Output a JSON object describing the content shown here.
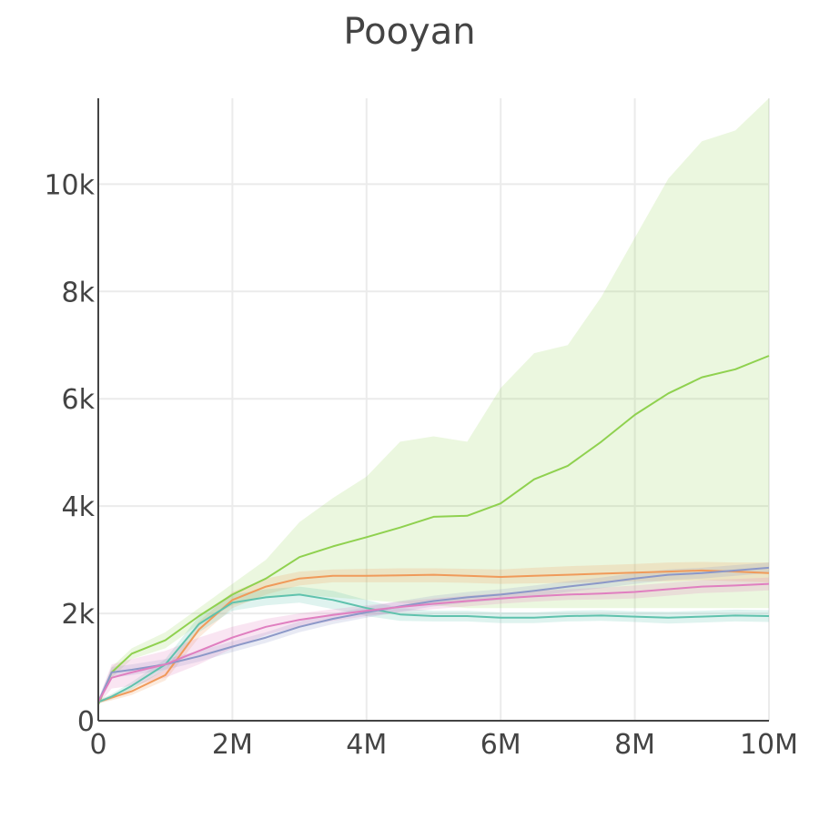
{
  "chart_data": {
    "type": "line",
    "title": "Pooyan",
    "xlabel": "",
    "ylabel": "",
    "xlim": [
      0,
      10000000
    ],
    "ylim": [
      0,
      11600
    ],
    "x_ticks": [
      {
        "value": 0,
        "label": "0"
      },
      {
        "value": 2000000,
        "label": "2M"
      },
      {
        "value": 4000000,
        "label": "4M"
      },
      {
        "value": 6000000,
        "label": "6M"
      },
      {
        "value": 8000000,
        "label": "8M"
      },
      {
        "value": 10000000,
        "label": "10M"
      }
    ],
    "y_ticks": [
      {
        "value": 0,
        "label": "0"
      },
      {
        "value": 2000,
        "label": "2k"
      },
      {
        "value": 4000,
        "label": "4k"
      },
      {
        "value": 6000,
        "label": "6k"
      },
      {
        "value": 8000,
        "label": "8k"
      },
      {
        "value": 10000,
        "label": "10k"
      }
    ],
    "grid": true,
    "legend": "none",
    "series": [
      {
        "color": "#8fd14f",
        "x": [
          0,
          200000,
          500000,
          1000000,
          1500000,
          2000000,
          2500000,
          3000000,
          3500000,
          4000000,
          4500000,
          5000000,
          5500000,
          6000000,
          6500000,
          7000000,
          7500000,
          8000000,
          8500000,
          9000000,
          9500000,
          10000000
        ],
        "y": [
          300,
          900,
          1250,
          1500,
          1950,
          2350,
          2650,
          3050,
          3250,
          3420,
          3600,
          3800,
          3820,
          4050,
          4500,
          4750,
          5200,
          5700,
          6100,
          6400,
          6550,
          6800
        ],
        "upper": [
          300,
          1000,
          1350,
          1650,
          2100,
          2550,
          3000,
          3700,
          4150,
          4550,
          5200,
          5300,
          5200,
          6200,
          6850,
          7000,
          7900,
          9000,
          10100,
          10800,
          11000,
          11600
        ],
        "lower": [
          300,
          800,
          1150,
          1350,
          1800,
          2150,
          2300,
          2350,
          2300,
          2250,
          2200,
          2150,
          2100,
          2100,
          2100,
          2100,
          2100,
          2100,
          2100,
          2100,
          2100,
          2100
        ]
      },
      {
        "color": "#f09a5a",
        "x": [
          0,
          200000,
          500000,
          1000000,
          1500000,
          2000000,
          2500000,
          3000000,
          3500000,
          4000000,
          4500000,
          5000000,
          5500000,
          6000000,
          6500000,
          7000000,
          7500000,
          8000000,
          8500000,
          9000000,
          9500000,
          10000000
        ],
        "y": [
          350,
          430,
          550,
          850,
          1700,
          2250,
          2500,
          2650,
          2700,
          2700,
          2710,
          2720,
          2700,
          2680,
          2700,
          2720,
          2740,
          2760,
          2780,
          2800,
          2780,
          2750
        ],
        "upper": [
          380,
          480,
          620,
          950,
          1850,
          2400,
          2650,
          2780,
          2820,
          2830,
          2840,
          2840,
          2830,
          2820,
          2850,
          2880,
          2900,
          2920,
          2950,
          2960,
          2950,
          2950
        ],
        "lower": [
          320,
          380,
          480,
          750,
          1550,
          2100,
          2350,
          2520,
          2580,
          2580,
          2580,
          2580,
          2570,
          2550,
          2560,
          2570,
          2580,
          2600,
          2600,
          2620,
          2600,
          2580
        ]
      },
      {
        "color": "#5fc2ad",
        "x": [
          0,
          200000,
          500000,
          1000000,
          1500000,
          2000000,
          2500000,
          3000000,
          3500000,
          4000000,
          4500000,
          5000000,
          5500000,
          6000000,
          6500000,
          7000000,
          7500000,
          8000000,
          8500000,
          9000000,
          9500000,
          10000000
        ],
        "y": [
          350,
          450,
          650,
          1050,
          1800,
          2200,
          2300,
          2350,
          2250,
          2100,
          1980,
          1950,
          1950,
          1920,
          1920,
          1950,
          1960,
          1940,
          1920,
          1940,
          1960,
          1950
        ],
        "upper": [
          380,
          500,
          720,
          1150,
          1950,
          2350,
          2450,
          2500,
          2420,
          2250,
          2100,
          2050,
          2050,
          2020,
          2020,
          2050,
          2060,
          2040,
          2030,
          2050,
          2070,
          2060
        ],
        "lower": [
          320,
          400,
          580,
          950,
          1650,
          2050,
          2150,
          2200,
          2080,
          1950,
          1860,
          1850,
          1850,
          1820,
          1820,
          1850,
          1860,
          1840,
          1810,
          1830,
          1850,
          1840
        ]
      },
      {
        "color": "#8c98c8",
        "x": [
          0,
          200000,
          500000,
          1000000,
          1500000,
          2000000,
          2500000,
          3000000,
          3500000,
          4000000,
          4500000,
          5000000,
          5500000,
          6000000,
          6500000,
          7000000,
          7500000,
          8000000,
          8500000,
          9000000,
          9500000,
          10000000
        ],
        "y": [
          350,
          900,
          950,
          1050,
          1200,
          1380,
          1550,
          1750,
          1900,
          2020,
          2130,
          2230,
          2300,
          2350,
          2420,
          2500,
          2570,
          2650,
          2720,
          2750,
          2800,
          2850
        ],
        "upper": [
          400,
          1000,
          1050,
          1150,
          1300,
          1480,
          1650,
          1850,
          2000,
          2120,
          2230,
          2330,
          2400,
          2450,
          2520,
          2600,
          2670,
          2750,
          2820,
          2850,
          2900,
          2950
        ],
        "lower": [
          300,
          800,
          850,
          950,
          1100,
          1280,
          1450,
          1650,
          1800,
          1920,
          2030,
          2130,
          2200,
          2250,
          2320,
          2400,
          2470,
          2550,
          2620,
          2650,
          2700,
          2750
        ]
      },
      {
        "color": "#e07fc0",
        "x": [
          0,
          200000,
          500000,
          1000000,
          1500000,
          2000000,
          2500000,
          3000000,
          3500000,
          4000000,
          4500000,
          5000000,
          5500000,
          6000000,
          6500000,
          7000000,
          7500000,
          8000000,
          8500000,
          9000000,
          9500000,
          10000000
        ],
        "y": [
          350,
          800,
          900,
          1050,
          1300,
          1550,
          1750,
          1880,
          1970,
          2050,
          2120,
          2180,
          2230,
          2280,
          2320,
          2350,
          2370,
          2400,
          2450,
          2500,
          2520,
          2550
        ],
        "upper": [
          400,
          1050,
          1150,
          1300,
          1550,
          1750,
          1900,
          2000,
          2080,
          2150,
          2220,
          2280,
          2330,
          2380,
          2420,
          2450,
          2480,
          2520,
          2570,
          2620,
          2640,
          2670
        ],
        "lower": [
          300,
          600,
          650,
          800,
          1050,
          1350,
          1600,
          1760,
          1860,
          1950,
          2020,
          2080,
          2130,
          2180,
          2220,
          2250,
          2260,
          2280,
          2330,
          2380,
          2400,
          2430
        ]
      }
    ]
  }
}
